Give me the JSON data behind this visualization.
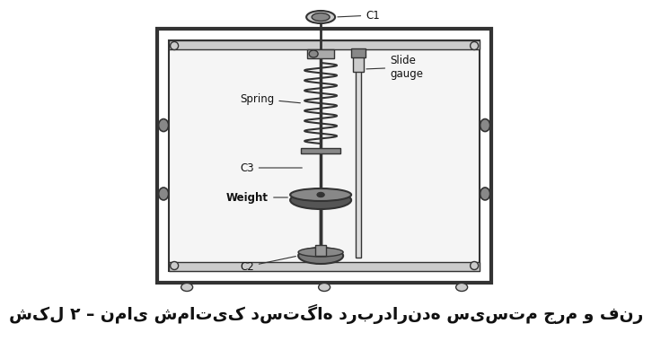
{
  "caption": "شکل ۲ – نمای شماتیک دستگاه دربردارنده سیستم جرم و فنر",
  "bg_color": "#ffffff",
  "label_C1": "C1",
  "label_C2": "C2",
  "label_C3": "C3",
  "label_Spring": "Spring",
  "label_Weight": "Weight",
  "label_Slide": "Slide\ngauge",
  "font_size_labels": 8.5,
  "font_size_caption": 13.5
}
